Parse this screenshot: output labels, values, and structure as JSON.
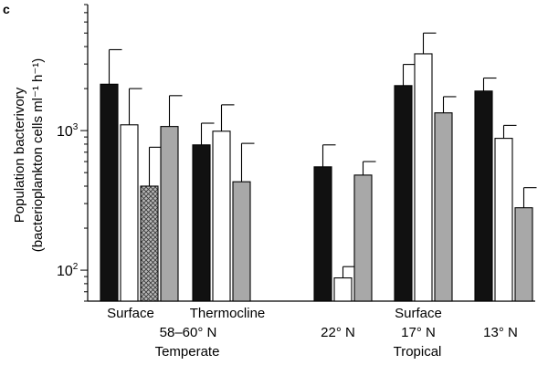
{
  "panel_label": "c",
  "colors": {
    "black": "#111111",
    "white": "#ffffff",
    "grey": "#a8a8a8",
    "hatch_bg": "#b9b9b9",
    "hatch_line": "#3a3a3a"
  },
  "chart_data": {
    "type": "bar",
    "scale": "log",
    "ylim": [
      60,
      8000
    ],
    "ylabel_line1": "Population bacterivory",
    "ylabel_line2": "(bacterioplankton cells ml⁻¹ h⁻¹)",
    "yticks": [
      {
        "value": 100,
        "label_base": "10",
        "label_exp": "2"
      },
      {
        "value": 1000,
        "label_base": "10",
        "label_exp": "3"
      }
    ],
    "groups": [
      {
        "name": "Surface",
        "bars": [
          {
            "fill": "black",
            "value": 2150,
            "err_upper": 3800
          },
          {
            "fill": "white",
            "value": 1100,
            "err_upper": 2000
          },
          {
            "fill": "hatched",
            "value": 400,
            "err_upper": 760
          },
          {
            "fill": "grey",
            "value": 1070,
            "err_upper": 1780
          }
        ]
      },
      {
        "name": "Thermocline",
        "bars": [
          {
            "fill": "black",
            "value": 790,
            "err_upper": 1130
          },
          {
            "fill": "white",
            "value": 990,
            "err_upper": 1530
          },
          {
            "fill": "grey",
            "value": 430,
            "err_upper": 810
          }
        ]
      },
      {
        "name": "22° N",
        "bars": [
          {
            "fill": "black",
            "value": 550,
            "err_upper": 790
          },
          {
            "fill": "white",
            "value": 88,
            "err_upper": 106
          },
          {
            "fill": "grey",
            "value": 480,
            "err_upper": 600
          }
        ]
      },
      {
        "name": "17° N",
        "bars": [
          {
            "fill": "black",
            "value": 2100,
            "err_upper": 2980
          },
          {
            "fill": "white",
            "value": 3550,
            "err_upper": 5000
          },
          {
            "fill": "grey",
            "value": 1340,
            "err_upper": 1750
          }
        ]
      },
      {
        "name": "13° N",
        "bars": [
          {
            "fill": "black",
            "value": 1920,
            "err_upper": 2380
          },
          {
            "fill": "white",
            "value": 880,
            "err_upper": 1090
          },
          {
            "fill": "grey",
            "value": 280,
            "err_upper": 390
          }
        ]
      }
    ],
    "xlabels": {
      "surface_temperate": "Surface",
      "thermocline": "Thermocline",
      "temperate_lat": "58–60° N",
      "temperate": "Temperate",
      "lat_22": "22° N",
      "surface_tropical": "Surface",
      "lat_17": "17° N",
      "tropical": "Tropical",
      "lat_13": "13° N"
    }
  }
}
